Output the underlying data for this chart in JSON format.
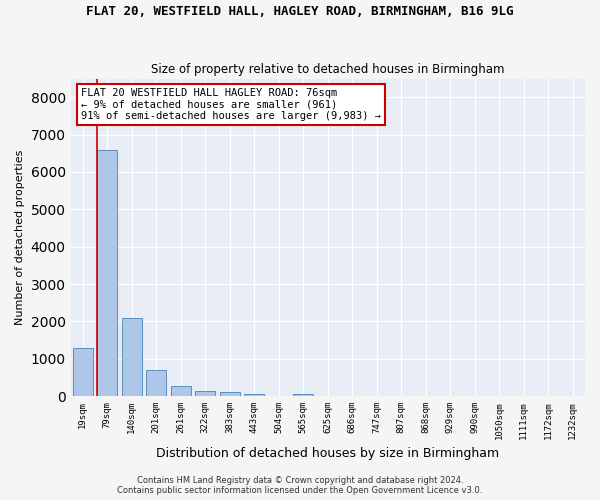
{
  "title": "FLAT 20, WESTFIELD HALL, HAGLEY ROAD, BIRMINGHAM, B16 9LG",
  "subtitle": "Size of property relative to detached houses in Birmingham",
  "xlabel": "Distribution of detached houses by size in Birmingham",
  "ylabel": "Number of detached properties",
  "bar_values": [
    1300,
    6600,
    2080,
    690,
    270,
    150,
    100,
    60,
    0,
    60,
    0,
    0,
    0,
    0,
    0,
    0,
    0,
    0,
    0,
    0,
    0
  ],
  "bar_labels": [
    "19sqm",
    "79sqm",
    "140sqm",
    "201sqm",
    "261sqm",
    "322sqm",
    "383sqm",
    "443sqm",
    "504sqm",
    "565sqm",
    "625sqm",
    "686sqm",
    "747sqm",
    "807sqm",
    "868sqm",
    "929sqm",
    "990sqm",
    "1050sqm",
    "1111sqm",
    "1172sqm",
    "1232sqm"
  ],
  "bar_color": "#aec6e8",
  "bar_edge_color": "#5a8fc0",
  "background_color": "#e8edf5",
  "grid_color": "#ffffff",
  "annotation_box_color": "#cc0000",
  "annotation_line_color": "#cc0000",
  "property_label": "FLAT 20 WESTFIELD HALL HAGLEY ROAD: 76sqm",
  "annotation_line1": "← 9% of detached houses are smaller (961)",
  "annotation_line2": "91% of semi-detached houses are larger (9,983) →",
  "vline_pos": 0.6,
  "ylim": [
    0,
    8500
  ],
  "yticks": [
    0,
    1000,
    2000,
    3000,
    4000,
    5000,
    6000,
    7000,
    8000
  ],
  "footer_line1": "Contains HM Land Registry data © Crown copyright and database right 2024.",
  "footer_line2": "Contains public sector information licensed under the Open Government Licence v3.0."
}
